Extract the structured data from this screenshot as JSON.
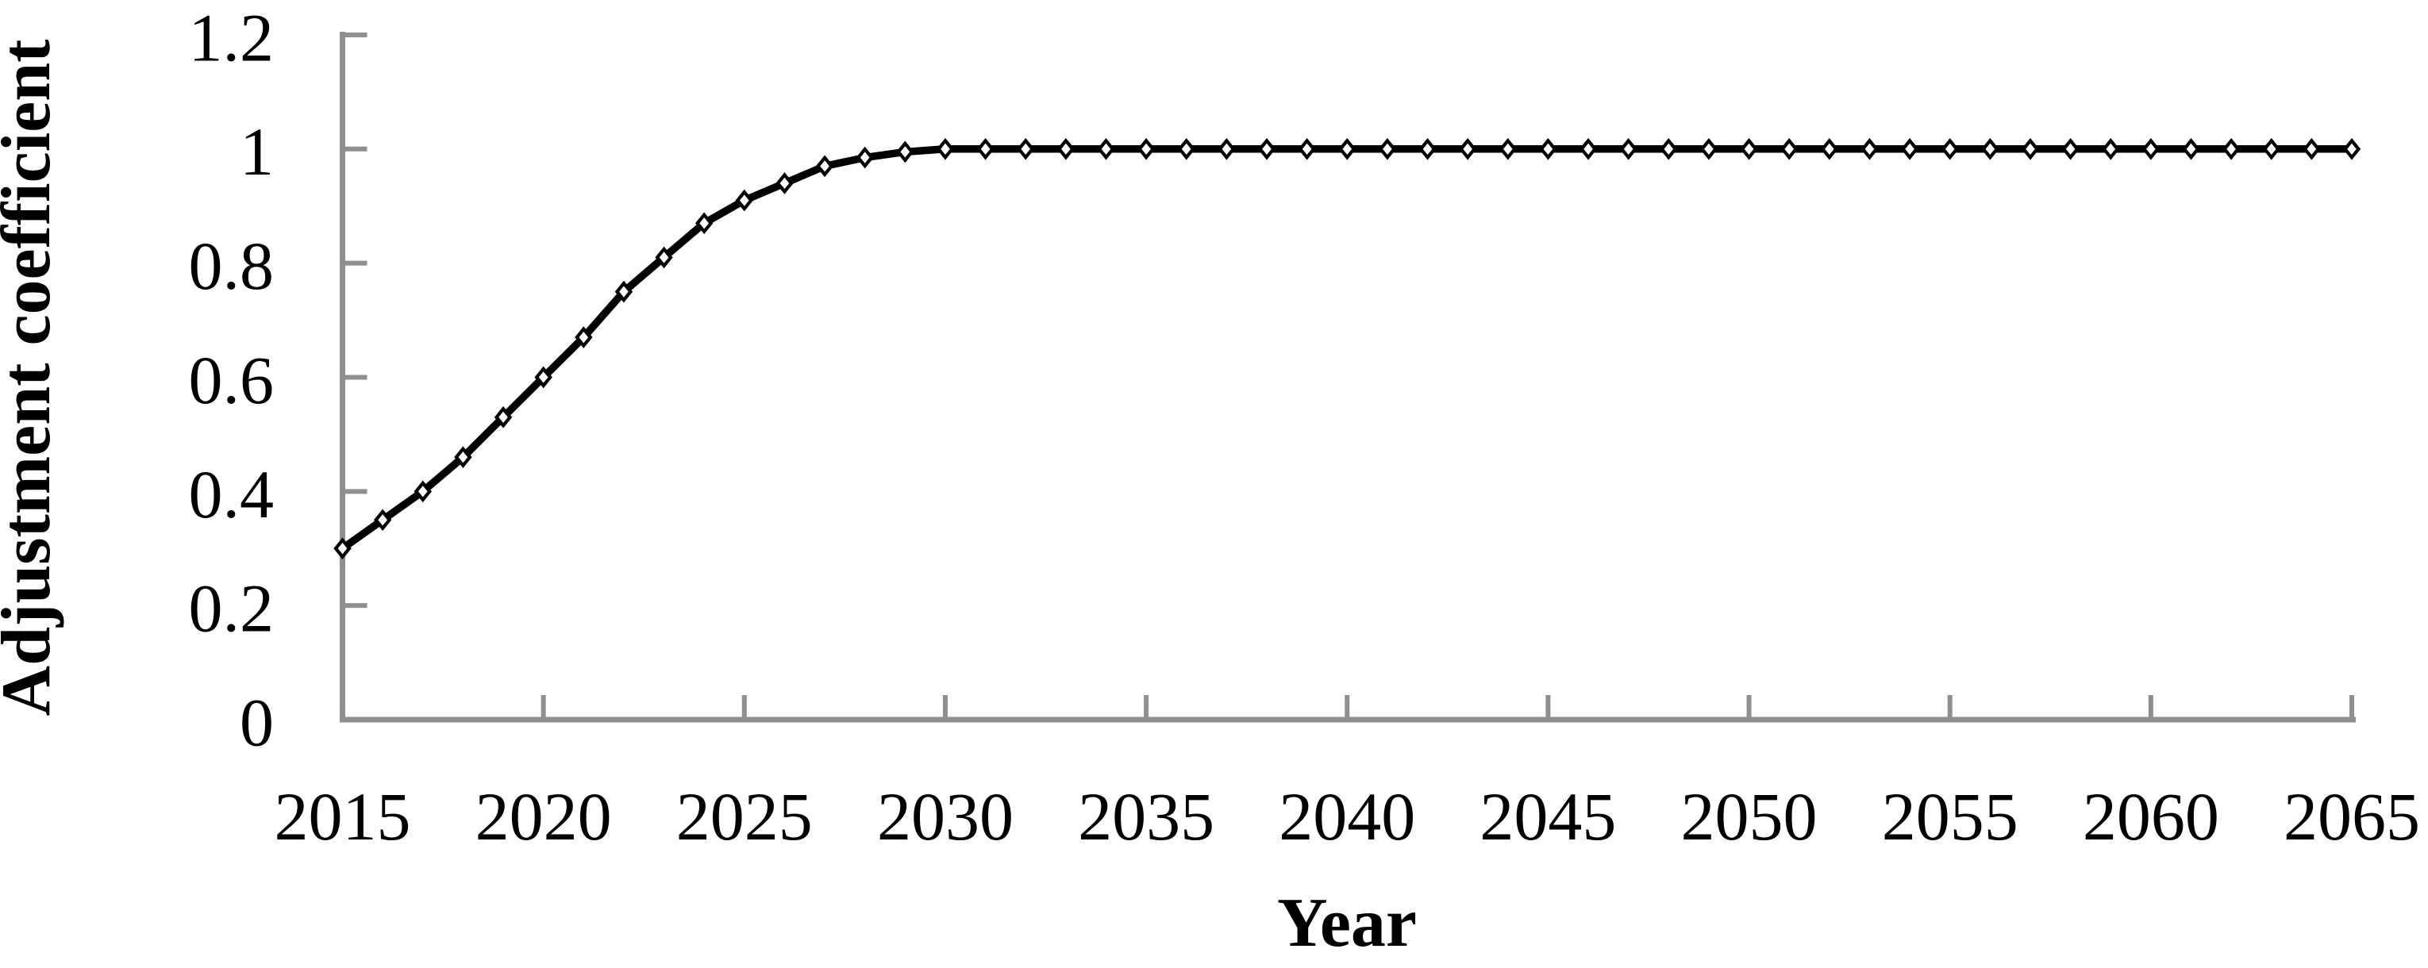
{
  "figure": {
    "y_axis_title": "Adjustment coefficient",
    "x_axis_title": "Year"
  },
  "chart_data": {
    "type": "line",
    "title": "",
    "xlabel": "Year",
    "ylabel": "Adjustment coefficient",
    "x": [
      2015,
      2016,
      2017,
      2018,
      2019,
      2020,
      2021,
      2022,
      2023,
      2024,
      2025,
      2026,
      2027,
      2028,
      2029,
      2030,
      2031,
      2032,
      2033,
      2034,
      2035,
      2036,
      2037,
      2038,
      2039,
      2040,
      2041,
      2042,
      2043,
      2044,
      2045,
      2046,
      2047,
      2048,
      2049,
      2050,
      2051,
      2052,
      2053,
      2054,
      2055,
      2056,
      2057,
      2058,
      2059,
      2060,
      2061,
      2062,
      2063,
      2064,
      2065
    ],
    "series": [
      {
        "name": "Adjustment coefficient",
        "values": [
          0.3,
          0.35,
          0.4,
          0.46,
          0.53,
          0.6,
          0.67,
          0.75,
          0.81,
          0.87,
          0.91,
          0.94,
          0.97,
          0.985,
          0.995,
          1.0,
          1.0,
          1.0,
          1.0,
          1.0,
          1.0,
          1.0,
          1.0,
          1.0,
          1.0,
          1.0,
          1.0,
          1.0,
          1.0,
          1.0,
          1.0,
          1.0,
          1.0,
          1.0,
          1.0,
          1.0,
          1.0,
          1.0,
          1.0,
          1.0,
          1.0,
          1.0,
          1.0,
          1.0,
          1.0,
          1.0,
          1.0,
          1.0,
          1.0,
          1.0,
          1.0
        ]
      }
    ],
    "xlim": [
      2015,
      2065
    ],
    "ylim": [
      0,
      1.2
    ],
    "x_ticks": [
      2015,
      2020,
      2025,
      2030,
      2035,
      2040,
      2045,
      2050,
      2055,
      2060,
      2065
    ],
    "x_tick_labels": [
      "2015",
      "2020",
      "2025",
      "2030",
      "2035",
      "2040",
      "2045",
      "2050",
      "2055",
      "2060",
      "2065"
    ],
    "y_ticks": [
      0,
      0.2,
      0.4,
      0.6,
      0.8,
      1,
      1.2
    ],
    "y_tick_labels": [
      "0",
      "0.2",
      "0.4",
      "0.6",
      "0.8",
      "1",
      "1.2"
    ],
    "grid": false,
    "legend": "none",
    "marker": "open-diamond",
    "line_color": "#000000",
    "axis_color": "#8f8f8f",
    "text_color": "#000000"
  }
}
